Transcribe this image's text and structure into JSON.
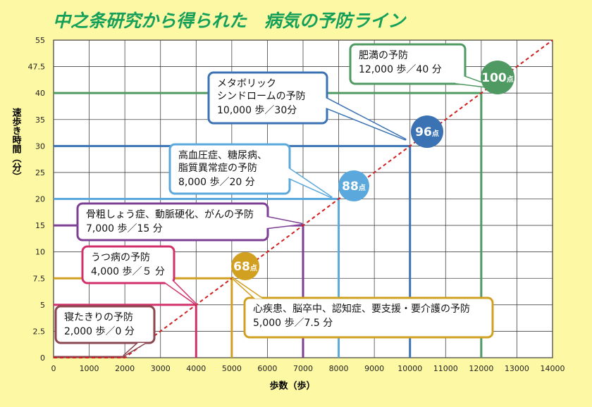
{
  "title": "中之条研究から得られた　病気の予防ライン",
  "colors": {
    "background": "#fdf8a4",
    "title": "#15a05a",
    "grid": "#444444",
    "diagonal": "#d11f1f",
    "maroon": "#8c4650",
    "gold": "#d2a020",
    "pink": "#d1306a",
    "purple": "#7d3f93",
    "lightblue": "#5aa8dc",
    "blue": "#3a72b4",
    "green": "#4e9a62"
  },
  "chart_data": {
    "type": "line",
    "title": "中之条研究から得られた　病気の予防ライン",
    "xlabel": "歩数（歩）",
    "ylabel": "速歩き時間（分）",
    "xlim": [
      0,
      14000
    ],
    "ylim": [
      0,
      55
    ],
    "x_ticks": [
      "0",
      "1000",
      "2000",
      "3000",
      "4000",
      "5000",
      "6000",
      "7000",
      "8000",
      "9000",
      "10000",
      "11000",
      "12000",
      "13000",
      "14000"
    ],
    "y_ticks": [
      "0",
      "2.5",
      "5",
      "7.5",
      "10",
      "15",
      "20",
      "25",
      "30",
      "35",
      "40",
      "47.5",
      "55"
    ],
    "grid": true,
    "diagonal": [
      {
        "x": 0,
        "y": 0
      },
      {
        "x": 2000,
        "y": 0
      },
      {
        "x": 14000,
        "y": 55
      }
    ],
    "prevention_lines": [
      {
        "key": "bedridden",
        "color": "maroon",
        "steps": 2000,
        "minutes": 0,
        "label": [
          "寝たきりの予防"
        ],
        "value_text": "2,000 歩／0 分",
        "score": ""
      },
      {
        "key": "depression",
        "color": "pink",
        "steps": 4000,
        "minutes": 5,
        "label": [
          "うつ病の予防"
        ],
        "value_text": "4,000 歩／５ 分",
        "score": ""
      },
      {
        "key": "heart",
        "color": "gold",
        "steps": 5000,
        "minutes": 7.5,
        "label": [
          "心疾患、脳卒中、認知症、要支援・要介護の予防"
        ],
        "value_text": "5,000 歩／7.5 分",
        "score": "68"
      },
      {
        "key": "bone",
        "color": "purple",
        "steps": 7000,
        "minutes": 15,
        "label": [
          "骨粗しょう症、動脈硬化、がんの予防"
        ],
        "value_text": "7,000 歩／15 分",
        "score": ""
      },
      {
        "key": "blood",
        "color": "lightblue",
        "steps": 8000,
        "minutes": 20,
        "label": [
          "高血圧症、糖尿病、",
          "脂質異常症の予防"
        ],
        "value_text": "8,000 歩／20 分",
        "score": "88"
      },
      {
        "key": "metabolic",
        "color": "blue",
        "steps": 10000,
        "minutes": 30,
        "label": [
          "メタボリック",
          "シンドロームの予防"
        ],
        "value_text": "10,000 歩／30分",
        "score": "96"
      },
      {
        "key": "obesity",
        "color": "green",
        "steps": 12000,
        "minutes": 40,
        "label": [
          "肥満の予防"
        ],
        "value_text": "12,000 歩／40 分",
        "score": "100"
      }
    ],
    "score_unit": "点"
  }
}
